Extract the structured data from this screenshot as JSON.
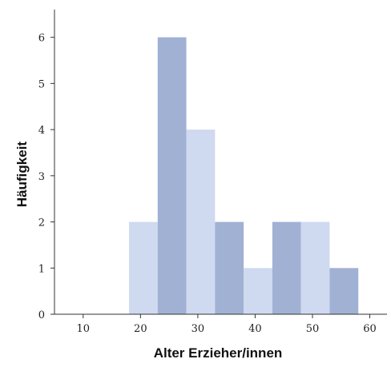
{
  "chart_data": {
    "type": "bar",
    "title": "",
    "xlabel": "Alter Erzieher/innen",
    "ylabel": "Häufigkeit",
    "xlim": [
      5,
      63
    ],
    "ylim": [
      0,
      6.6
    ],
    "x_ticks": [
      "10",
      "20",
      "30",
      "40",
      "50",
      "60"
    ],
    "x_tick_values": [
      10,
      20,
      30,
      40,
      50,
      60
    ],
    "y_ticks": [
      "0",
      "1",
      "2",
      "3",
      "4",
      "5",
      "6"
    ],
    "y_tick_values": [
      0,
      1,
      2,
      3,
      4,
      5,
      6
    ],
    "grid": false,
    "colors": {
      "light": "#cfd9f0",
      "dark": "#a1b1d4"
    },
    "bins": [
      {
        "start": 18,
        "end": 23,
        "count": 2,
        "shade": "light"
      },
      {
        "start": 23,
        "end": 28,
        "count": 6,
        "shade": "dark"
      },
      {
        "start": 28,
        "end": 33,
        "count": 4,
        "shade": "light"
      },
      {
        "start": 33,
        "end": 38,
        "count": 2,
        "shade": "dark"
      },
      {
        "start": 38,
        "end": 43,
        "count": 1,
        "shade": "light"
      },
      {
        "start": 43,
        "end": 48,
        "count": 2,
        "shade": "dark"
      },
      {
        "start": 48,
        "end": 53,
        "count": 2,
        "shade": "light"
      },
      {
        "start": 53,
        "end": 58,
        "count": 1,
        "shade": "dark"
      }
    ]
  }
}
